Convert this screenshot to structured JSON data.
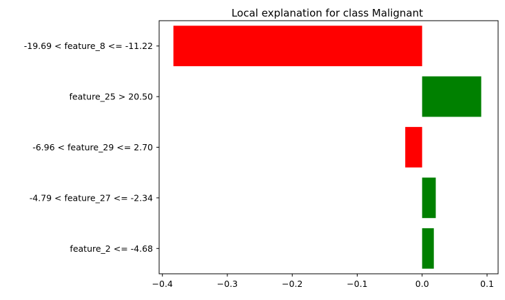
{
  "chart_data": {
    "type": "bar",
    "orientation": "horizontal",
    "title": "Local explanation for class Malignant",
    "xlabel": "",
    "ylabel": "",
    "categories": [
      "-19.69 < feature_8 <= -11.22",
      "feature_25 > 20.50",
      "-6.96 < feature_29 <= 2.70",
      "-4.79 < feature_27 <= -2.34",
      "feature_2 <= -4.68"
    ],
    "values": [
      -0.383,
      0.091,
      -0.026,
      0.021,
      0.018
    ],
    "xlim": [
      -0.405,
      0.117
    ],
    "xticks": [
      -0.4,
      -0.3,
      -0.2,
      -0.1,
      0.0,
      0.1
    ],
    "xtick_labels": [
      "−0.4",
      "−0.3",
      "−0.2",
      "−0.1",
      "0.0",
      "0.1"
    ],
    "colors": {
      "positive": "#008000",
      "negative": "#ff0000"
    },
    "grid": false,
    "legend": "none"
  }
}
